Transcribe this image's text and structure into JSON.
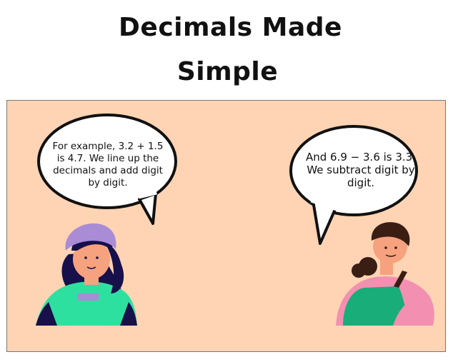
{
  "title": {
    "line1": "Decimals Made",
    "line2": "Simple"
  },
  "scene": {
    "background": "#ffd4b4",
    "left_speaker": {
      "speech": "For example, 3.2 + 1.5 is 4.7. We line up the decimals and add digit by digit.",
      "shirt_color": "#2ee09f",
      "hat_color": "#a98bd6",
      "hair_color": "#17104a"
    },
    "right_speaker": {
      "speech": "And 6.9 − 3.6 is 3.3. We subtract digit by digit.",
      "dress_color": "#18ad79",
      "shirt_color": "#f38fb0",
      "hair_color": "#3a1e14"
    }
  }
}
